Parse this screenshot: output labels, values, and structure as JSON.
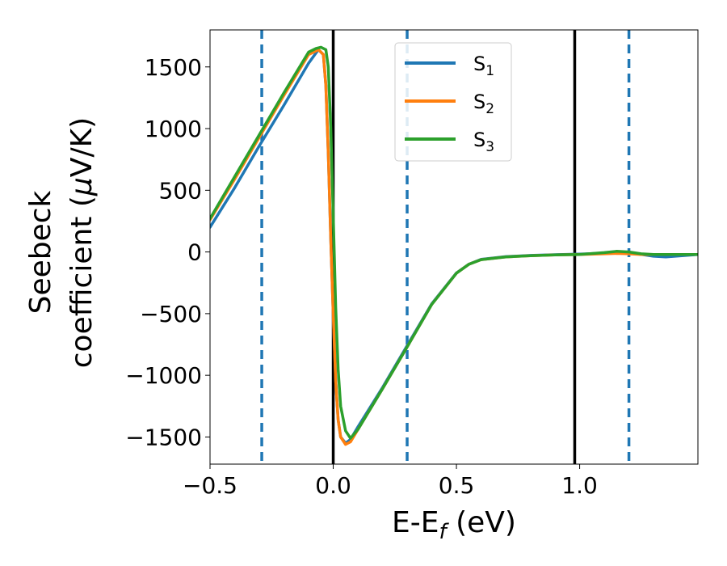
{
  "chart_data": {
    "type": "line",
    "xlabel": {
      "main": "E-E",
      "sub": "f",
      "unit": " (eV)"
    },
    "ylabel": {
      "line1": "Seebeck",
      "line2_prefix": "coefficient  (",
      "line2_mu": "μ",
      "line2_suffix": "V/K)"
    },
    "xlim": [
      -0.5,
      1.48
    ],
    "ylim": [
      -1720,
      1800
    ],
    "xticks": [
      -0.5,
      0.0,
      0.5,
      1.0
    ],
    "xtick_labels": [
      "−0.5",
      "0.0",
      "0.5",
      "1.0"
    ],
    "yticks": [
      1500,
      1000,
      500,
      0,
      -500,
      -1000,
      -1500
    ],
    "ytick_labels": [
      "1500",
      "1000",
      "500",
      "0",
      "−500",
      "−1000",
      "−1500"
    ],
    "vlines_solid": [
      0.0,
      0.98
    ],
    "vlines_dashed": [
      -0.29,
      0.3,
      1.2
    ],
    "vline_solid_color": "#000000",
    "vline_dashed_color": "#1f77b4",
    "series": [
      {
        "name": "S",
        "sub": "1",
        "color": "#1f77b4",
        "x": [
          -0.5,
          -0.4,
          -0.3,
          -0.2,
          -0.1,
          -0.06,
          -0.04,
          -0.03,
          -0.02,
          -0.01,
          0.0,
          0.01,
          0.02,
          0.03,
          0.05,
          0.07,
          0.1,
          0.2,
          0.3,
          0.4,
          0.5,
          0.55,
          0.6,
          0.7,
          0.8,
          0.9,
          1.0,
          1.1,
          1.15,
          1.2,
          1.25,
          1.3,
          1.35,
          1.48
        ],
        "values": [
          200,
          520,
          860,
          1190,
          1530,
          1640,
          1600,
          1350,
          800,
          100,
          -500,
          -1050,
          -1360,
          -1500,
          -1550,
          -1520,
          -1420,
          -1100,
          -760,
          -420,
          -170,
          -100,
          -60,
          -38,
          -28,
          -22,
          -18,
          -10,
          -5,
          -5,
          -20,
          -35,
          -40,
          -20
        ]
      },
      {
        "name": "S",
        "sub": "2",
        "color": "#ff7f0e",
        "x": [
          -0.5,
          -0.4,
          -0.3,
          -0.2,
          -0.1,
          -0.06,
          -0.04,
          -0.03,
          -0.02,
          -0.01,
          0.0,
          0.01,
          0.02,
          0.03,
          0.05,
          0.07,
          0.1,
          0.2,
          0.3,
          0.4,
          0.5,
          0.55,
          0.6,
          0.7,
          0.8,
          0.9,
          1.0,
          1.1,
          1.15,
          1.2,
          1.25,
          1.3,
          1.35,
          1.48
        ],
        "values": [
          260,
          590,
          930,
          1270,
          1600,
          1640,
          1600,
          1350,
          800,
          100,
          -500,
          -1050,
          -1360,
          -1500,
          -1560,
          -1540,
          -1440,
          -1110,
          -770,
          -425,
          -172,
          -100,
          -62,
          -40,
          -30,
          -24,
          -20,
          -15,
          -12,
          -15,
          -20,
          -20,
          -20,
          -20
        ]
      },
      {
        "name": "S",
        "sub": "3",
        "color": "#2ca02c",
        "x": [
          -0.5,
          -0.4,
          -0.3,
          -0.2,
          -0.1,
          -0.07,
          -0.05,
          -0.03,
          -0.02,
          -0.01,
          0.0,
          0.01,
          0.02,
          0.03,
          0.05,
          0.07,
          0.1,
          0.2,
          0.3,
          0.4,
          0.5,
          0.55,
          0.6,
          0.7,
          0.8,
          0.9,
          1.0,
          1.1,
          1.15,
          1.2,
          1.25,
          1.3,
          1.35,
          1.48
        ],
        "values": [
          270,
          610,
          950,
          1290,
          1620,
          1650,
          1660,
          1640,
          1500,
          1000,
          300,
          -450,
          -950,
          -1250,
          -1450,
          -1510,
          -1440,
          -1110,
          -770,
          -425,
          -172,
          -100,
          -62,
          -40,
          -30,
          -24,
          -20,
          -5,
          5,
          0,
          -15,
          -20,
          -20,
          -20
        ]
      }
    ]
  }
}
